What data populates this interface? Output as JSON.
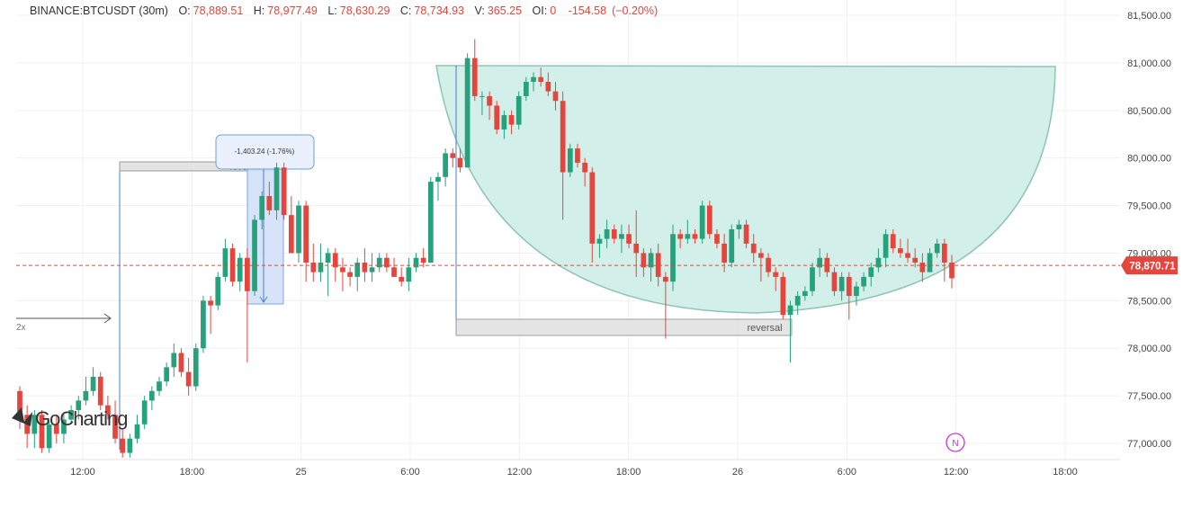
{
  "header": {
    "symbol": "BINANCE:BTCUSDT (30m)",
    "o_label": "O:",
    "o_value": "78,889.51",
    "h_label": "H:",
    "h_value": "78,977.49",
    "l_label": "L:",
    "l_value": "78,630.29",
    "c_label": "C:",
    "c_value": "78,734.93",
    "v_label": "V:",
    "v_value": "365.25",
    "oi_label": "OI:",
    "oi_value": "0",
    "change": "-154.58",
    "change_pct": "(−0.20%)"
  },
  "logo": {
    "text": "GoCharting"
  },
  "annotations": {
    "left_reversal": "reversal",
    "right_reversal": "reversal",
    "measure": "-1,403.24 (-1.76%)",
    "arrow_label": "2x",
    "news_marker": "N"
  },
  "price_tag": "78,870.71",
  "colors": {
    "up": "#26a17b",
    "down": "#e5453d",
    "cup_fill": "#d3efe9",
    "cup_stroke": "#8fc5b6",
    "measure_fill": "#d2e1f8",
    "measure_stroke": "#6f9de0",
    "price_tag": "#e5453d",
    "reversal_fill": "#e4e4e4",
    "news": "#cc33cc",
    "axis_text": "#444444"
  },
  "chart_data": {
    "type": "candlestick",
    "title": "BINANCE:BTCUSDT (30m)",
    "x_ticks": [
      "12:00",
      "18:00",
      "25",
      "6:00",
      "12:00",
      "18:00",
      "26",
      "6:00",
      "12:00",
      "18:00"
    ],
    "y_ticks": [
      "81,500.00",
      "81,000.00",
      "80,500.00",
      "80,000.00",
      "79,500.00",
      "79,000.00",
      "78,500.00",
      "78,000.00",
      "77,500.00",
      "77,000.00"
    ],
    "ylim": [
      76850,
      81600
    ],
    "grid": true,
    "last_price": 78870.71,
    "candles": [
      [
        77550,
        77600,
        77150,
        77300
      ],
      [
        77300,
        77400,
        76950,
        77100
      ],
      [
        77100,
        77350,
        76950,
        77300
      ],
      [
        77300,
        77350,
        76900,
        76950
      ],
      [
        76950,
        77250,
        76900,
        77200
      ],
      [
        77200,
        77300,
        77000,
        77100
      ],
      [
        77100,
        77300,
        77000,
        77250
      ],
      [
        77250,
        77400,
        77200,
        77350
      ],
      [
        77350,
        77500,
        77250,
        77450
      ],
      [
        77450,
        77700,
        77400,
        77550
      ],
      [
        77550,
        77800,
        77500,
        77700
      ],
      [
        77700,
        77750,
        77350,
        77400
      ],
      [
        77400,
        77500,
        77250,
        77300
      ],
      [
        77300,
        77450,
        77000,
        77050
      ],
      [
        77050,
        77150,
        76850,
        76900
      ],
      [
        76900,
        77100,
        76850,
        77050
      ],
      [
        77050,
        77300,
        77000,
        77200
      ],
      [
        77200,
        77500,
        77150,
        77450
      ],
      [
        77450,
        77600,
        77350,
        77550
      ],
      [
        77550,
        77700,
        77500,
        77650
      ],
      [
        77650,
        77850,
        77600,
        77800
      ],
      [
        77800,
        78050,
        77700,
        77950
      ],
      [
        77950,
        78000,
        77700,
        77750
      ],
      [
        77750,
        77900,
        77500,
        77600
      ],
      [
        77600,
        78050,
        77550,
        78000
      ],
      [
        78000,
        78550,
        77950,
        78500
      ],
      [
        78500,
        78550,
        78150,
        78450
      ],
      [
        78450,
        78800,
        78400,
        78750
      ],
      [
        78750,
        79150,
        78700,
        79050
      ],
      [
        79050,
        79100,
        78650,
        78700
      ],
      [
        78700,
        79000,
        78600,
        78950
      ],
      [
        78950,
        79050,
        77850,
        78600
      ],
      [
        78600,
        79400,
        78550,
        79350
      ],
      [
        79350,
        79650,
        79250,
        79600
      ],
      [
        79600,
        79750,
        79400,
        79450
      ],
      [
        79450,
        79950,
        79350,
        79900
      ],
      [
        79900,
        79950,
        79350,
        79400
      ],
      [
        79400,
        79600,
        79000,
        79000
      ],
      [
        79000,
        79550,
        78900,
        79500
      ],
      [
        79500,
        79550,
        78700,
        78900
      ],
      [
        78900,
        79100,
        78700,
        78800
      ],
      [
        78800,
        79100,
        78700,
        78900
      ],
      [
        78900,
        79050,
        78550,
        79000
      ],
      [
        79000,
        79050,
        78700,
        78850
      ],
      [
        78850,
        78950,
        78600,
        78800
      ],
      [
        78800,
        78850,
        78650,
        78750
      ],
      [
        78750,
        78950,
        78600,
        78900
      ],
      [
        78900,
        79050,
        78700,
        78800
      ],
      [
        78800,
        79000,
        78700,
        78850
      ],
      [
        78850,
        79000,
        78800,
        78950
      ],
      [
        78950,
        79000,
        78800,
        78850
      ],
      [
        78850,
        78950,
        78750,
        78750
      ],
      [
        78750,
        78850,
        78650,
        78700
      ],
      [
        78700,
        78950,
        78600,
        78850
      ],
      [
        78850,
        79000,
        78800,
        78950
      ],
      [
        78950,
        79050,
        78850,
        78900
      ],
      [
        78900,
        79800,
        78900,
        79750
      ],
      [
        79750,
        79850,
        79550,
        79800
      ],
      [
        79800,
        80100,
        79700,
        80050
      ],
      [
        80050,
        80100,
        79900,
        80000
      ],
      [
        80000,
        80100,
        79850,
        79900
      ],
      [
        79900,
        81100,
        79900,
        81050
      ],
      [
        81050,
        81250,
        80600,
        80650
      ],
      [
        80650,
        80700,
        80450,
        80650
      ],
      [
        80650,
        80700,
        80400,
        80550
      ],
      [
        80550,
        80600,
        80250,
        80300
      ],
      [
        80300,
        80500,
        80200,
        80450
      ],
      [
        80450,
        80500,
        80250,
        80350
      ],
      [
        80350,
        80700,
        80300,
        80650
      ],
      [
        80650,
        80850,
        80600,
        80800
      ],
      [
        80800,
        80900,
        80700,
        80850
      ],
      [
        80850,
        80950,
        80750,
        80800
      ],
      [
        80800,
        80900,
        80650,
        80700
      ],
      [
        80700,
        80800,
        80500,
        80600
      ],
      [
        80600,
        80700,
        79350,
        79850
      ],
      [
        79850,
        80150,
        79800,
        80100
      ],
      [
        80100,
        80150,
        79900,
        79950
      ],
      [
        79950,
        80000,
        79700,
        79850
      ],
      [
        79850,
        79900,
        78900,
        79100
      ],
      [
        79100,
        79200,
        78950,
        79150
      ],
      [
        79150,
        79350,
        79050,
        79250
      ],
      [
        79250,
        79300,
        79100,
        79150
      ],
      [
        79150,
        79300,
        79000,
        79200
      ],
      [
        79200,
        79300,
        79050,
        79100
      ],
      [
        79100,
        79450,
        78750,
        79000
      ],
      [
        79000,
        79050,
        78750,
        78850
      ],
      [
        78850,
        79050,
        78700,
        79000
      ],
      [
        79000,
        79100,
        78650,
        78750
      ],
      [
        78750,
        78800,
        78100,
        78700
      ],
      [
        78700,
        79300,
        78600,
        79200
      ],
      [
        79200,
        79250,
        79050,
        79150
      ],
      [
        79150,
        79350,
        79100,
        79200
      ],
      [
        79200,
        79250,
        79100,
        79150
      ],
      [
        79150,
        79550,
        79100,
        79500
      ],
      [
        79500,
        79550,
        79150,
        79200
      ],
      [
        79200,
        79250,
        79050,
        79100
      ],
      [
        79100,
        79200,
        78800,
        78900
      ],
      [
        78900,
        79300,
        78850,
        79250
      ],
      [
        79250,
        79350,
        79150,
        79300
      ],
      [
        79300,
        79350,
        79050,
        79100
      ],
      [
        79100,
        79200,
        78900,
        79000
      ],
      [
        79000,
        79050,
        78700,
        78950
      ],
      [
        78950,
        79000,
        78750,
        78800
      ],
      [
        78800,
        78850,
        78600,
        78750
      ],
      [
        78750,
        78800,
        78300,
        78350
      ],
      [
        78350,
        78500,
        77850,
        78450
      ],
      [
        78450,
        78600,
        78350,
        78550
      ],
      [
        78550,
        78650,
        78500,
        78600
      ],
      [
        78600,
        78900,
        78550,
        78850
      ],
      [
        78850,
        79050,
        78750,
        78950
      ],
      [
        78950,
        79000,
        78750,
        78800
      ],
      [
        78800,
        78850,
        78550,
        78600
      ],
      [
        78600,
        78800,
        78500,
        78750
      ],
      [
        78750,
        78800,
        78300,
        78550
      ],
      [
        78550,
        78700,
        78450,
        78650
      ],
      [
        78650,
        78800,
        78600,
        78750
      ],
      [
        78750,
        78900,
        78650,
        78850
      ],
      [
        78850,
        79050,
        78800,
        78950
      ],
      [
        78950,
        79250,
        78850,
        79200
      ],
      [
        79200,
        79250,
        79000,
        79050
      ],
      [
        79050,
        79150,
        78950,
        79000
      ],
      [
        79000,
        79150,
        78900,
        78950
      ],
      [
        78950,
        79050,
        78850,
        78900
      ],
      [
        78900,
        79000,
        78700,
        78800
      ],
      [
        78800,
        79050,
        78800,
        79000
      ],
      [
        79000,
        79150,
        78950,
        79100
      ],
      [
        79100,
        79150,
        78700,
        78900
      ],
      [
        78900,
        78980,
        78630,
        78735
      ]
    ]
  }
}
